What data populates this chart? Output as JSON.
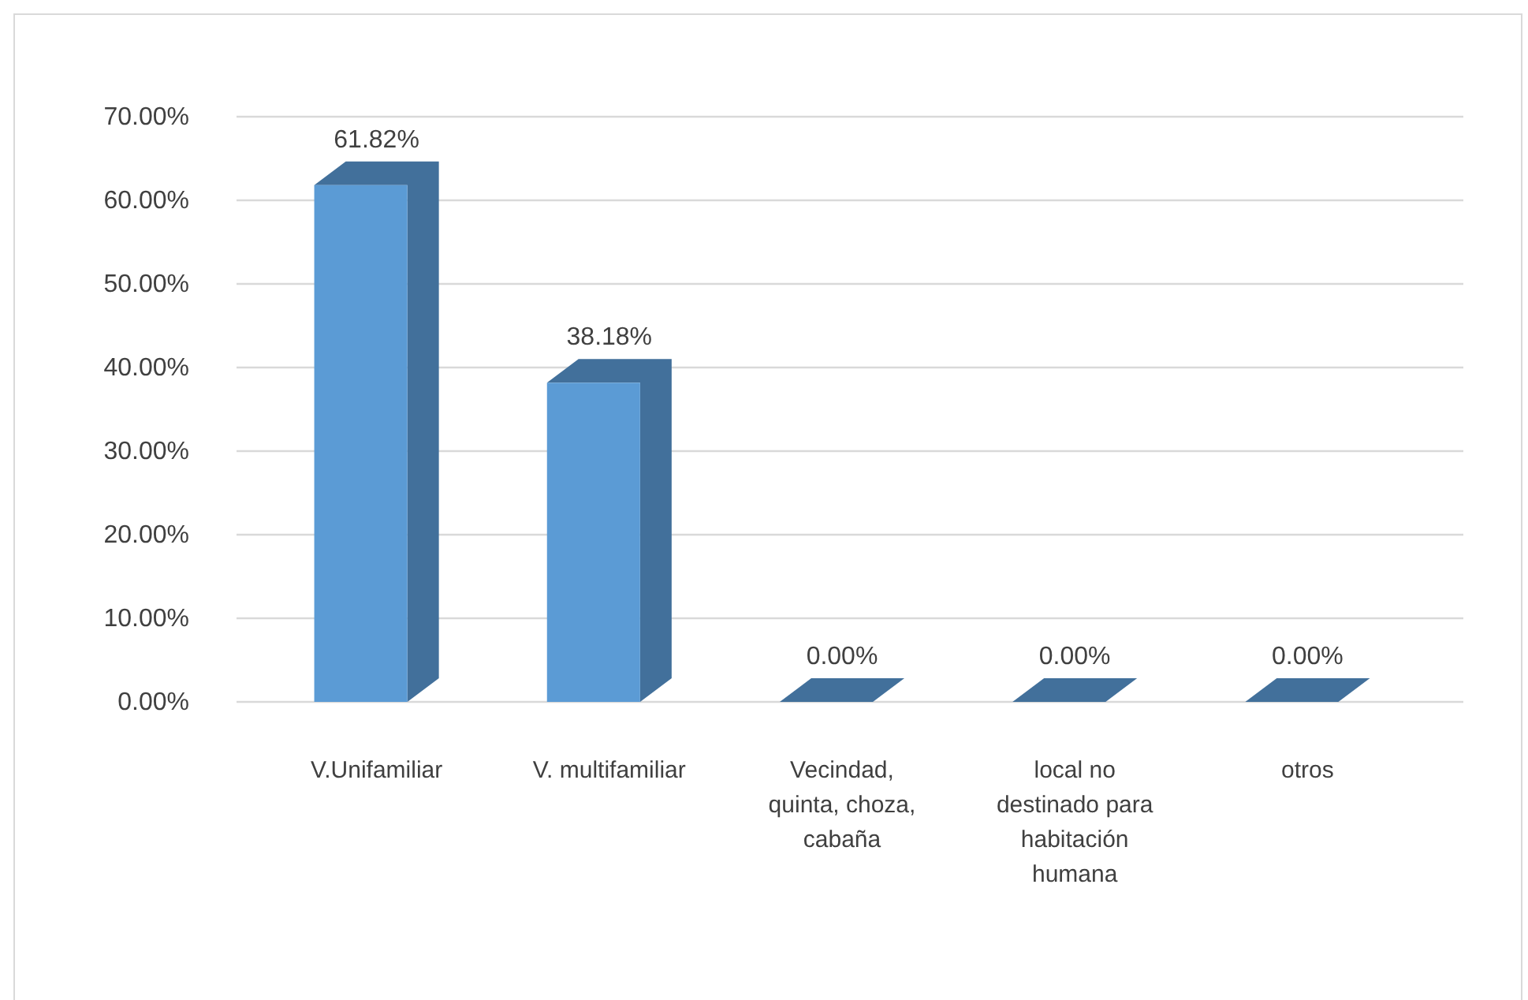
{
  "chart_data": {
    "type": "bar",
    "categories": [
      "V.Unifamiliar",
      "V. multifamiliar",
      "Vecindad, quinta, choza, cabaña",
      "local no destinado para habitación humana",
      "otros"
    ],
    "values": [
      61.82,
      38.18,
      0,
      0,
      0
    ],
    "value_labels": [
      "61.82%",
      "38.18%",
      "0.00%",
      "0.00%",
      "0.00%"
    ],
    "color": "#5b9bd5",
    "ylim": [
      0,
      70
    ],
    "yticks": [
      {
        "value": 0,
        "label": "0.00%"
      },
      {
        "value": 10,
        "label": "10.00%"
      },
      {
        "value": 20,
        "label": "20.00%"
      },
      {
        "value": 30,
        "label": "30.00%"
      },
      {
        "value": 40,
        "label": "40.00%"
      },
      {
        "value": 50,
        "label": "50.00%"
      },
      {
        "value": 60,
        "label": "60.00%"
      },
      {
        "value": 70,
        "label": "70.00%"
      }
    ],
    "grid": "y"
  }
}
